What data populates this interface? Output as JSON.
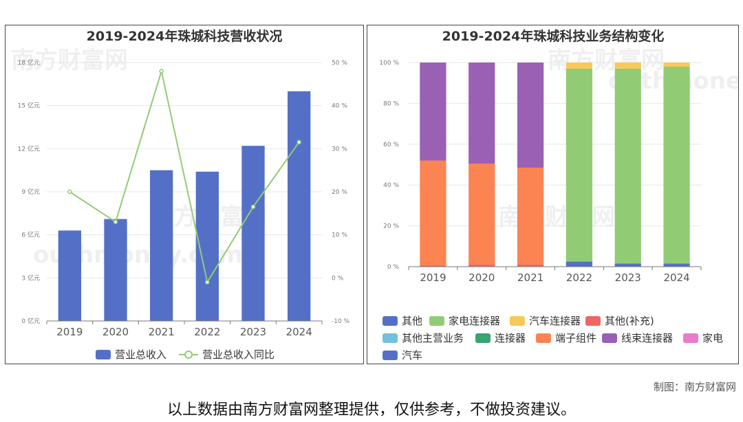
{
  "left_chart": {
    "title": "2019-2024年珠城科技营收状况",
    "y_left_ticks": [
      "0 亿元",
      "3 亿元",
      "6 亿元",
      "9 亿元",
      "12 亿元",
      "15 亿元",
      "18 亿元"
    ],
    "y_right_ticks": [
      "-10 %",
      "0 %",
      "10 %",
      "20 %",
      "30 %",
      "40 %",
      "50 %"
    ],
    "legend": [
      "营业总收入",
      "营业总收入同比"
    ]
  },
  "right_chart": {
    "title": "2019-2024年珠城科技业务结构变化",
    "y_ticks": [
      "0 %",
      "20 %",
      "40 %",
      "60 %",
      "80 %",
      "100 %"
    ],
    "legend": [
      "其他",
      "家电连接器",
      "汽车连接器",
      "其他(补充)",
      "其他主营业务",
      "连接器",
      "端子组件",
      "线束连接器",
      "家电",
      "汽车"
    ]
  },
  "credit": "制图：南方财富网",
  "disclaimer": "以上数据由南方财富网整理提供，仅供参考，不做投资建议。",
  "watermark": {
    "brand": "南方财富网",
    "domain": "outhmoney.com"
  },
  "chart_data": [
    {
      "type": "bar",
      "title": "2019-2024年珠城科技营收状况",
      "categories": [
        "2019",
        "2020",
        "2021",
        "2022",
        "2023",
        "2024"
      ],
      "y_unit": "亿元",
      "ylim": [
        0,
        18
      ],
      "y2_unit": "%",
      "y2lim": [
        -10,
        50
      ],
      "series": [
        {
          "name": "营业总收入",
          "type": "bar",
          "axis": "left",
          "color": "#5470c6",
          "values": [
            6.3,
            7.1,
            10.5,
            10.4,
            12.2,
            16.0
          ]
        },
        {
          "name": "营业总收入同比",
          "type": "line",
          "axis": "right",
          "color": "#91cc75",
          "values": [
            20.0,
            13.0,
            48.0,
            -1.0,
            16.5,
            31.5
          ]
        }
      ],
      "legend_position": "bottom",
      "grid": true
    },
    {
      "type": "bar",
      "stacked": true,
      "title": "2019-2024年珠城科技业务结构变化",
      "categories": [
        "2019",
        "2020",
        "2021",
        "2022",
        "2023",
        "2024"
      ],
      "y_unit": "%",
      "ylim": [
        0,
        100
      ],
      "series": [
        {
          "name": "其他",
          "color": "#5470c6",
          "values": [
            0,
            0,
            0,
            2.5,
            1.5,
            1.5
          ]
        },
        {
          "name": "家电连接器",
          "color": "#91cc75",
          "values": [
            0,
            0,
            0,
            94.5,
            95.5,
            96.5
          ]
        },
        {
          "name": "汽车连接器",
          "color": "#fac858",
          "values": [
            0,
            0,
            0,
            3.0,
            3.0,
            2.0
          ]
        },
        {
          "name": "其他(补充)",
          "color": "#ee6666",
          "values": [
            0.5,
            1.0,
            1.0,
            0,
            0,
            0
          ]
        },
        {
          "name": "其他主营业务",
          "color": "#73c0de",
          "values": [
            0,
            0,
            0,
            0,
            0,
            0
          ]
        },
        {
          "name": "连接器",
          "color": "#3ba272",
          "values": [
            0,
            0,
            0,
            0,
            0,
            0
          ]
        },
        {
          "name": "端子组件",
          "color": "#fc8452",
          "values": [
            51.5,
            49.5,
            47.5,
            0,
            0,
            0
          ]
        },
        {
          "name": "线束连接器",
          "color": "#9a60b4",
          "values": [
            48.0,
            49.5,
            51.5,
            0,
            0,
            0
          ]
        },
        {
          "name": "家电",
          "color": "#ea7ccc",
          "values": [
            0,
            0,
            0,
            0,
            0,
            0
          ]
        },
        {
          "name": "汽车",
          "color": "#5470c6",
          "values": [
            0,
            0,
            0,
            0,
            0,
            0
          ]
        }
      ],
      "legend_position": "bottom",
      "grid": true
    }
  ]
}
